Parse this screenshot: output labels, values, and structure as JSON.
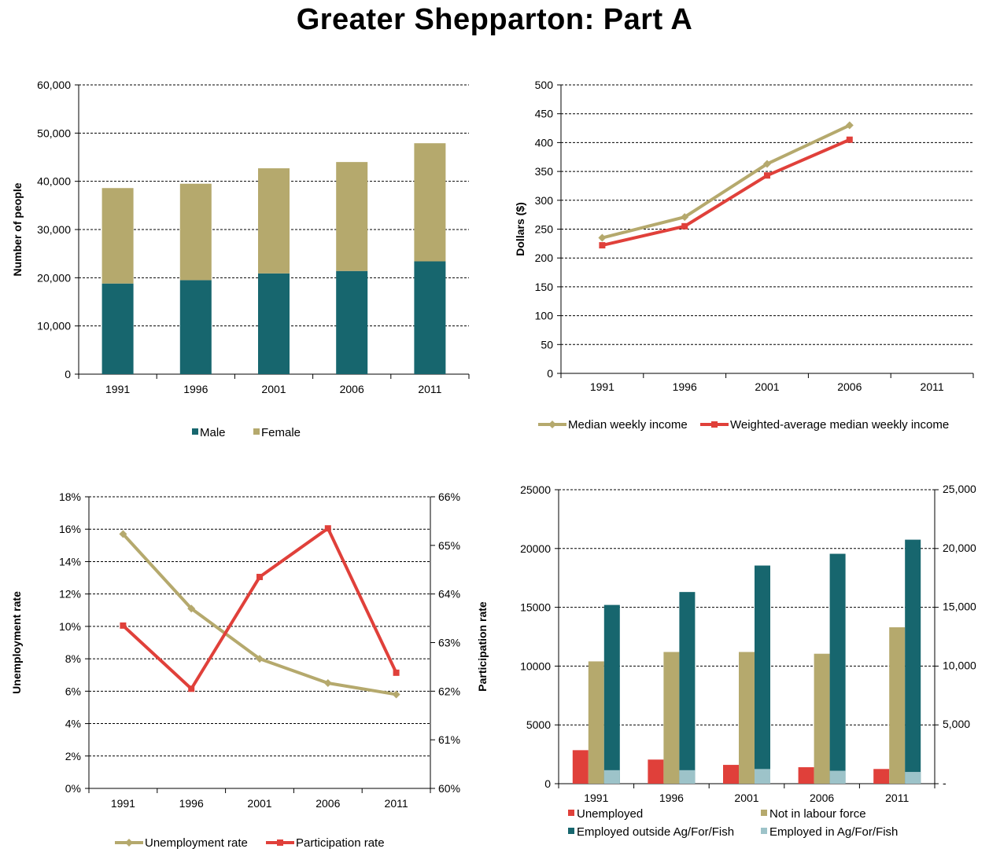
{
  "page": {
    "title": "Greater Shepparton: Part A"
  },
  "colors": {
    "teal": "#17666E",
    "khaki": "#B5A96D",
    "red": "#E0403A",
    "lightblue": "#9DC3C9",
    "grid": "#000000"
  },
  "chart_data": [
    {
      "id": "population",
      "type": "bar",
      "stacked": true,
      "categories": [
        "1991",
        "1996",
        "2001",
        "2006",
        "2011"
      ],
      "series": [
        {
          "name": "Male",
          "color": "#17666E",
          "values": [
            18800,
            19500,
            20900,
            21400,
            23400
          ]
        },
        {
          "name": "Female",
          "color": "#B5A96D",
          "values": [
            19800,
            20000,
            21800,
            22600,
            24500
          ]
        }
      ],
      "ylabel": "Number of people",
      "ylim": [
        0,
        60000
      ],
      "yticks": [
        0,
        10000,
        20000,
        30000,
        40000,
        50000,
        60000
      ],
      "ytick_labels": [
        "0",
        "10,000",
        "20,000",
        "30,000",
        "40,000",
        "50,000",
        "60,000"
      ],
      "grid": true,
      "legend": "bottom"
    },
    {
      "id": "income",
      "type": "line",
      "categories": [
        "1991",
        "1996",
        "2001",
        "2006",
        "2011"
      ],
      "series": [
        {
          "name": "Median weekly income",
          "color": "#B5A96D",
          "marker": "diamond",
          "values": [
            235,
            271,
            363,
            430,
            null
          ]
        },
        {
          "name": "Weighted-average median weekly income",
          "color": "#E0403A",
          "marker": "square",
          "values": [
            222,
            255,
            343,
            405,
            null
          ]
        }
      ],
      "ylabel": "Dollars ($)",
      "ylim": [
        0,
        500
      ],
      "yticks": [
        0,
        50,
        100,
        150,
        200,
        250,
        300,
        350,
        400,
        450,
        500
      ],
      "ytick_labels": [
        "0",
        "50",
        "100",
        "150",
        "200",
        "250",
        "300",
        "350",
        "400",
        "450",
        "500"
      ],
      "grid": true,
      "legend": "bottom"
    },
    {
      "id": "rates",
      "type": "line",
      "categories": [
        "1991",
        "1996",
        "2001",
        "2006",
        "2011"
      ],
      "series": [
        {
          "name": "Unemployment rate",
          "color": "#B5A96D",
          "marker": "diamond",
          "axis": "left",
          "values": [
            15.7,
            11.1,
            8.0,
            6.5,
            5.8
          ]
        },
        {
          "name": "Participation rate",
          "color": "#E0403A",
          "marker": "square",
          "axis": "right",
          "values": [
            63.35,
            62.05,
            64.35,
            65.35,
            62.38
          ]
        }
      ],
      "ylabel": "Unemployment rate",
      "ylim": [
        0,
        18
      ],
      "yticks": [
        0,
        2,
        4,
        6,
        8,
        10,
        12,
        14,
        16,
        18
      ],
      "ytick_labels": [
        "0%",
        "2%",
        "4%",
        "6%",
        "8%",
        "10%",
        "12%",
        "14%",
        "16%",
        "18%"
      ],
      "y2label": "Participation rate",
      "y2lim": [
        60,
        66
      ],
      "y2ticks": [
        60,
        61,
        62,
        63,
        64,
        65,
        66
      ],
      "y2tick_labels": [
        "60%",
        "61%",
        "62%",
        "63%",
        "64%",
        "65%",
        "66%"
      ],
      "grid": true,
      "legend": "bottom"
    },
    {
      "id": "labour",
      "type": "bar",
      "stacked": false,
      "categories": [
        "1991",
        "1996",
        "2001",
        "2006",
        "2011"
      ],
      "series": [
        {
          "name": "Unemployed",
          "color": "#E0403A",
          "values": [
            2850,
            2050,
            1600,
            1400,
            1250
          ],
          "bar_slot": 0
        },
        {
          "name": "Not in labour force",
          "color": "#B5A96D",
          "values": [
            10400,
            11200,
            11200,
            11050,
            13300
          ],
          "bar_slot": 1
        },
        {
          "name": "Employed outside Ag/For/Fish",
          "color": "#17666E",
          "values": [
            15200,
            16300,
            18550,
            19550,
            20750
          ],
          "bar_slot": 2
        },
        {
          "name": "Employed in Ag/For/Fish",
          "color": "#9DC3C9",
          "values": [
            1150,
            1150,
            1250,
            1100,
            1000
          ],
          "bar_slot": 2
        }
      ],
      "ylim": [
        0,
        25000
      ],
      "yticks": [
        0,
        5000,
        10000,
        15000,
        20000,
        25000
      ],
      "ytick_labels": [
        "0",
        "5000",
        "10000",
        "15000",
        "20000",
        "25000"
      ],
      "y2ticks": [
        0,
        5000,
        10000,
        15000,
        20000,
        25000
      ],
      "y2tick_labels": [
        "-",
        "5,000",
        "10,000",
        "15,000",
        "20,000",
        "25,000"
      ],
      "grid": true,
      "legend": "bottom"
    }
  ]
}
